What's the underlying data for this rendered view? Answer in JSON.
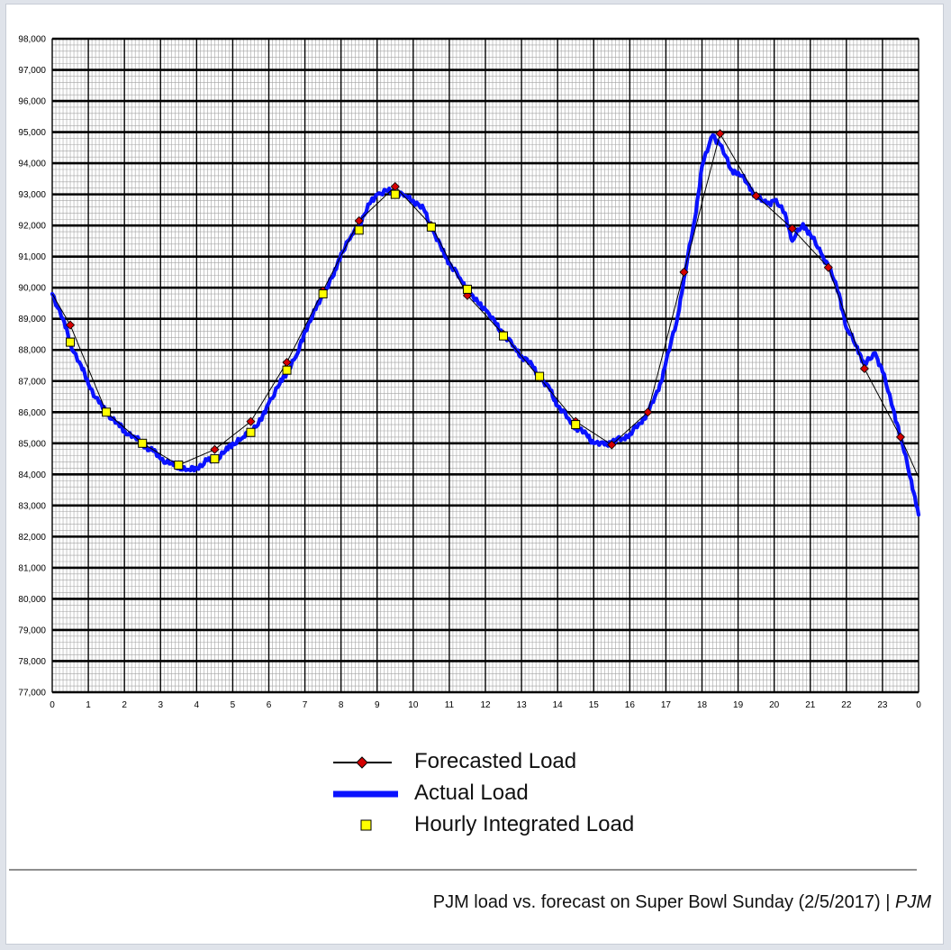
{
  "chart_data": {
    "type": "line",
    "title": "",
    "xlabel": "",
    "ylabel": "",
    "xlim": [
      0,
      24
    ],
    "ylim": [
      77000,
      98000
    ],
    "x_tick_labels": [
      "0",
      "1",
      "2",
      "3",
      "4",
      "5",
      "6",
      "7",
      "8",
      "9",
      "10",
      "11",
      "12",
      "13",
      "14",
      "15",
      "16",
      "17",
      "18",
      "19",
      "20",
      "21",
      "22",
      "23",
      "0"
    ],
    "y_tick_labels": [
      "77,000",
      "78,000",
      "79,000",
      "80,000",
      "81,000",
      "82,000",
      "83,000",
      "84,000",
      "85,000",
      "86,000",
      "87,000",
      "88,000",
      "89,000",
      "90,000",
      "91,000",
      "92,000",
      "93,000",
      "94,000",
      "95,000",
      "96,000",
      "97,000",
      "98,000"
    ],
    "grid": true,
    "legend_placement": "bottom-center",
    "series": [
      {
        "name": "Forecasted Load",
        "color": "#000000",
        "marker_color": "#d40000",
        "marker": "diamond",
        "x": [
          0.5,
          1.5,
          2.5,
          3.5,
          4.5,
          5.5,
          6.5,
          7.5,
          8.5,
          9.5,
          10.5,
          11.5,
          12.5,
          13.5,
          14.5,
          15.5,
          16.5,
          17.5,
          18.5,
          19.5,
          20.5,
          21.5,
          22.5,
          23.5
        ],
        "y": [
          88800,
          86000,
          85000,
          84300,
          84800,
          85700,
          87600,
          89900,
          92150,
          93250,
          92000,
          89750,
          88500,
          87100,
          85700,
          84950,
          86000,
          90500,
          94950,
          92950,
          91900,
          90650,
          87400,
          85200
        ]
      },
      {
        "name": "Actual Load",
        "color": "#0a12ff",
        "x": [
          0,
          0.3,
          0.5,
          0.8,
          1.0,
          1.3,
          1.5,
          1.8,
          2.0,
          2.3,
          2.5,
          2.8,
          3.0,
          3.3,
          3.5,
          3.8,
          4.0,
          4.3,
          4.5,
          4.8,
          5.0,
          5.3,
          5.5,
          5.8,
          6.0,
          6.3,
          6.5,
          6.8,
          7.0,
          7.3,
          7.5,
          7.8,
          8.0,
          8.3,
          8.5,
          8.8,
          9.0,
          9.3,
          9.5,
          9.8,
          10.0,
          10.3,
          10.5,
          10.8,
          11.0,
          11.3,
          11.5,
          11.8,
          12.0,
          12.3,
          12.5,
          12.8,
          13.0,
          13.3,
          13.5,
          13.8,
          14.0,
          14.3,
          14.5,
          14.8,
          15.0,
          15.3,
          15.5,
          15.8,
          16.0,
          16.3,
          16.5,
          16.8,
          17.0,
          17.3,
          17.5,
          17.8,
          18.0,
          18.3,
          18.5,
          18.8,
          19.0,
          19.3,
          19.5,
          19.8,
          20.0,
          20.3,
          20.5,
          20.8,
          21.0,
          21.3,
          21.5,
          21.8,
          22.0,
          22.3,
          22.5,
          22.8,
          23.0,
          23.3,
          23.5,
          23.8,
          24.0
        ],
        "y": [
          89800,
          89000,
          88200,
          87500,
          86900,
          86300,
          86000,
          85650,
          85400,
          85200,
          84950,
          84750,
          84500,
          84350,
          84250,
          84150,
          84200,
          84450,
          84450,
          84750,
          85000,
          85200,
          85400,
          85750,
          86300,
          86900,
          87300,
          87900,
          88600,
          89300,
          89800,
          90400,
          91100,
          91700,
          92000,
          92700,
          93000,
          93100,
          93050,
          92950,
          92800,
          92500,
          91950,
          91200,
          90800,
          90300,
          89900,
          89500,
          89300,
          88800,
          88500,
          88100,
          87800,
          87500,
          87100,
          86700,
          86200,
          85800,
          85500,
          85300,
          85000,
          84950,
          85050,
          85150,
          85300,
          85650,
          86000,
          86700,
          87600,
          88900,
          90300,
          92200,
          93900,
          94900,
          94600,
          93800,
          93700,
          93300,
          92900,
          92700,
          92800,
          92400,
          91500,
          92050,
          91700,
          91100,
          90700,
          89800,
          88700,
          88100,
          87500,
          87900,
          87300,
          86100,
          85200,
          83800,
          82700
        ]
      },
      {
        "name": "Hourly Integrated Load",
        "color": "#ffff00",
        "marker": "square",
        "x": [
          0.5,
          1.5,
          2.5,
          3.5,
          4.5,
          5.5,
          6.5,
          7.5,
          8.5,
          9.5,
          10.5,
          11.5,
          12.5,
          13.5,
          14.5
        ],
        "y": [
          88250,
          86000,
          85000,
          84300,
          84500,
          85350,
          87350,
          89800,
          91850,
          93000,
          91950,
          89950,
          88450,
          87150,
          85600
        ]
      }
    ]
  },
  "legend": {
    "items": [
      {
        "label": "Forecasted Load"
      },
      {
        "label": "Actual Load"
      },
      {
        "label": "Hourly Integrated Load"
      }
    ]
  },
  "caption": {
    "text": "PJM load vs. forecast on Super Bowl Sunday (2/5/2017) | ",
    "source": "PJM"
  }
}
